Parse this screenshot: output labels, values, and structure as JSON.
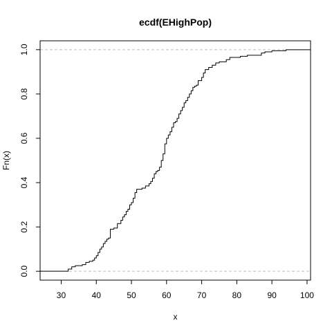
{
  "chart_data": {
    "type": "line",
    "title": "ecdf(EHighPop)",
    "xlabel": "x",
    "ylabel": "Fn(x)",
    "xlim": [
      24,
      101
    ],
    "ylim": [
      0,
      1
    ],
    "x_ticks": [
      30,
      40,
      50,
      60,
      70,
      80,
      90,
      100
    ],
    "y_ticks": [
      0.0,
      0.2,
      0.4,
      0.6,
      0.8,
      1.0
    ],
    "y_tick_labels": [
      "0.0",
      "0.2",
      "0.4",
      "0.6",
      "0.8",
      "1.0"
    ],
    "reference_lines": [
      0,
      1
    ],
    "series": [
      {
        "x": [
          32,
          33,
          34,
          36,
          37,
          38,
          39,
          39.5,
          40,
          40.5,
          41,
          41.5,
          42,
          42.5,
          43,
          43.5,
          44,
          44.5,
          45,
          46,
          47,
          47.5,
          48,
          48.5,
          49,
          49.5,
          50,
          50.5,
          51,
          51.5,
          52,
          53,
          54,
          55,
          55.5,
          56,
          56.5,
          57,
          57.5,
          58,
          58.5,
          59,
          59.5,
          60,
          60.5,
          61,
          61.5,
          62,
          62.5,
          63,
          63.5,
          64,
          64.5,
          65,
          65.5,
          66,
          66.5,
          67,
          67.5,
          68,
          68.5,
          69,
          70,
          70.5,
          71,
          72,
          73,
          74,
          75,
          77,
          78,
          81,
          83,
          87,
          88,
          90,
          94
        ],
        "y": [
          0.01,
          0.02,
          0.025,
          0.03,
          0.04,
          0.045,
          0.05,
          0.06,
          0.07,
          0.085,
          0.1,
          0.11,
          0.125,
          0.135,
          0.145,
          0.15,
          0.19,
          0.19,
          0.195,
          0.215,
          0.23,
          0.245,
          0.255,
          0.27,
          0.28,
          0.3,
          0.31,
          0.33,
          0.355,
          0.37,
          0.37,
          0.375,
          0.385,
          0.395,
          0.405,
          0.42,
          0.44,
          0.45,
          0.455,
          0.47,
          0.5,
          0.53,
          0.575,
          0.6,
          0.615,
          0.63,
          0.65,
          0.67,
          0.675,
          0.69,
          0.71,
          0.725,
          0.74,
          0.76,
          0.77,
          0.785,
          0.8,
          0.815,
          0.83,
          0.835,
          0.84,
          0.86,
          0.875,
          0.895,
          0.91,
          0.92,
          0.93,
          0.94,
          0.945,
          0.955,
          0.965,
          0.97,
          0.975,
          0.985,
          0.99,
          0.995,
          1.0
        ]
      }
    ]
  }
}
